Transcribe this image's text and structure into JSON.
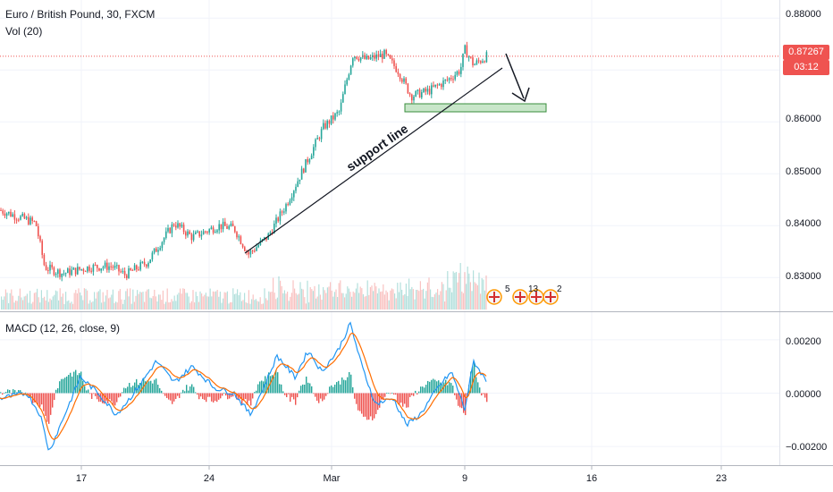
{
  "header": {
    "symbol_line": "Euro / British Pound, 30, FXCM",
    "volume_label": "Vol (20)",
    "macd_label": "MACD (12, 26, close, 9)"
  },
  "price_axis": {
    "ticks": [
      "0.88000",
      "0.87000",
      "0.86000",
      "0.85000",
      "0.84000",
      "0.83000"
    ],
    "current_price": "0.87267",
    "countdown": "03:12",
    "partial_label": "0."
  },
  "macd_axis": {
    "ticks": [
      "0.00200",
      "0.00000",
      "−0.00200"
    ]
  },
  "time_axis": {
    "ticks": [
      "17",
      "24",
      "Mar",
      "9",
      "16",
      "23"
    ]
  },
  "annotations": {
    "support_label": "support line"
  },
  "event_badges": [
    "5",
    "13",
    "2"
  ],
  "colors": {
    "up": "#26a69a",
    "down": "#ef5350",
    "macd_line": "#2196f3",
    "signal_line": "#ff6d00",
    "price_line": "#ef5350",
    "zone_fill": "#c8e6c9",
    "zone_border": "#388e3c"
  },
  "chart_data": {
    "type": "line",
    "title": "Euro / British Pound, 30, FXCM",
    "x_labels": [
      "17",
      "24",
      "Mar",
      "9",
      "16",
      "23"
    ],
    "price_series": {
      "name": "Euro / British Pound",
      "approx_close": [
        0.8425,
        0.84,
        0.832,
        0.8315,
        0.832,
        0.831,
        0.84,
        0.837,
        0.838,
        0.834,
        0.837,
        0.844,
        0.852,
        0.86,
        0.872,
        0.871,
        0.866,
        0.865,
        0.87,
        0.873,
        0.8727
      ]
    },
    "ylim": [
      0.8235,
      0.8835
    ],
    "macd_ylim": [
      -0.0027,
      0.003
    ],
    "current_price": 0.87267
  }
}
